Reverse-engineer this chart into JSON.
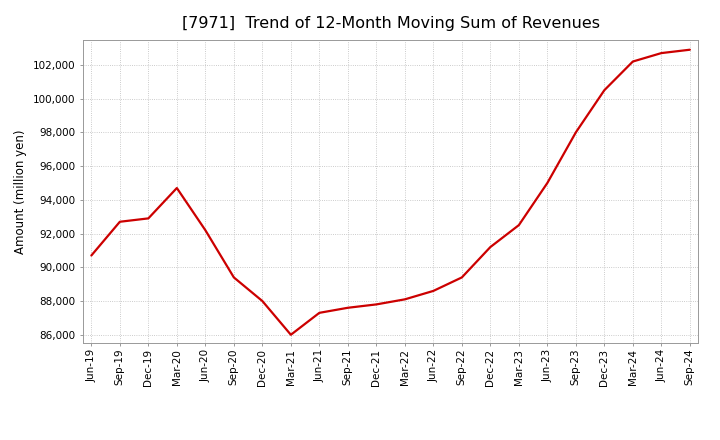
{
  "title": "[7971]  Trend of 12-Month Moving Sum of Revenues",
  "ylabel": "Amount (million yen)",
  "line_color": "#cc0000",
  "background_color": "#ffffff",
  "plot_bg_color": "#ffffff",
  "grid_color": "#bbbbbb",
  "x_labels": [
    "Jun-19",
    "Sep-19",
    "Dec-19",
    "Mar-20",
    "Jun-20",
    "Sep-20",
    "Dec-20",
    "Mar-21",
    "Jun-21",
    "Sep-21",
    "Dec-21",
    "Mar-22",
    "Jun-22",
    "Sep-22",
    "Dec-22",
    "Mar-23",
    "Jun-23",
    "Sep-23",
    "Dec-23",
    "Mar-24",
    "Jun-24",
    "Sep-24"
  ],
  "y_values": [
    90700,
    92700,
    92900,
    94700,
    92200,
    89400,
    88000,
    86000,
    87300,
    87600,
    87800,
    88100,
    88600,
    89400,
    91200,
    92500,
    95000,
    98000,
    100500,
    102200,
    102700,
    102900
  ],
  "ylim": [
    85500,
    103500
  ],
  "yticks": [
    86000,
    88000,
    90000,
    92000,
    94000,
    96000,
    98000,
    100000,
    102000
  ],
  "title_fontsize": 11.5,
  "tick_fontsize": 7.5,
  "ylabel_fontsize": 8.5,
  "line_width": 1.6
}
